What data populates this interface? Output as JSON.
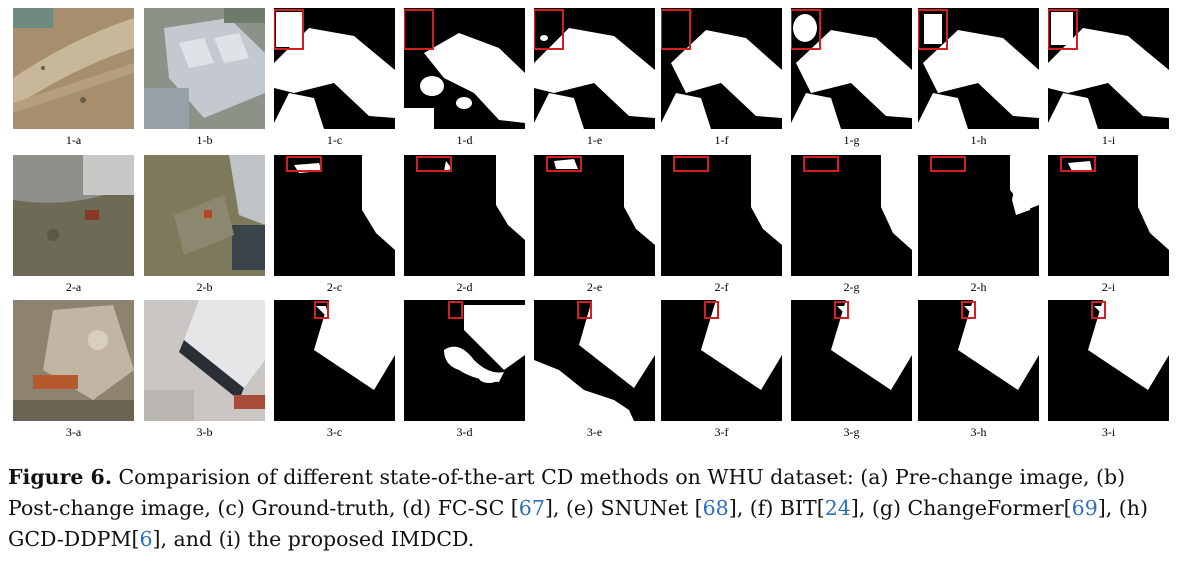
{
  "figure": {
    "rows": [
      {
        "labels": [
          "1-a",
          "1-b",
          "1-c",
          "1-d",
          "1-e",
          "1-f",
          "1-g",
          "1-h",
          "1-i"
        ]
      },
      {
        "labels": [
          "2-a",
          "2-b",
          "2-c",
          "2-d",
          "2-e",
          "2-f",
          "2-g",
          "2-h",
          "2-i"
        ]
      },
      {
        "labels": [
          "3-a",
          "3-b",
          "3-c",
          "3-d",
          "3-e",
          "3-f",
          "3-g",
          "3-h",
          "3-i"
        ]
      }
    ],
    "colors": {
      "mask_bg": "#000000",
      "mask_fg": "#ffffff",
      "highlight_box": "#d21f1f"
    }
  },
  "caption": {
    "figure_label": "Figure 6.",
    "text_parts": [
      " Comparision of different state-of-the-art CD methods on WHU dataset: (a) Pre-change image, (b) Post-change image, (c) Ground-truth, (d) FC-SC [",
      "67",
      "], (e) SNUNet [",
      "68",
      "], (f) BIT[",
      "24",
      "], (g) ChangeFormer[",
      "69",
      "], (h) GCD-DDPM[",
      "6",
      "], and (i) the proposed IMDCD."
    ]
  }
}
